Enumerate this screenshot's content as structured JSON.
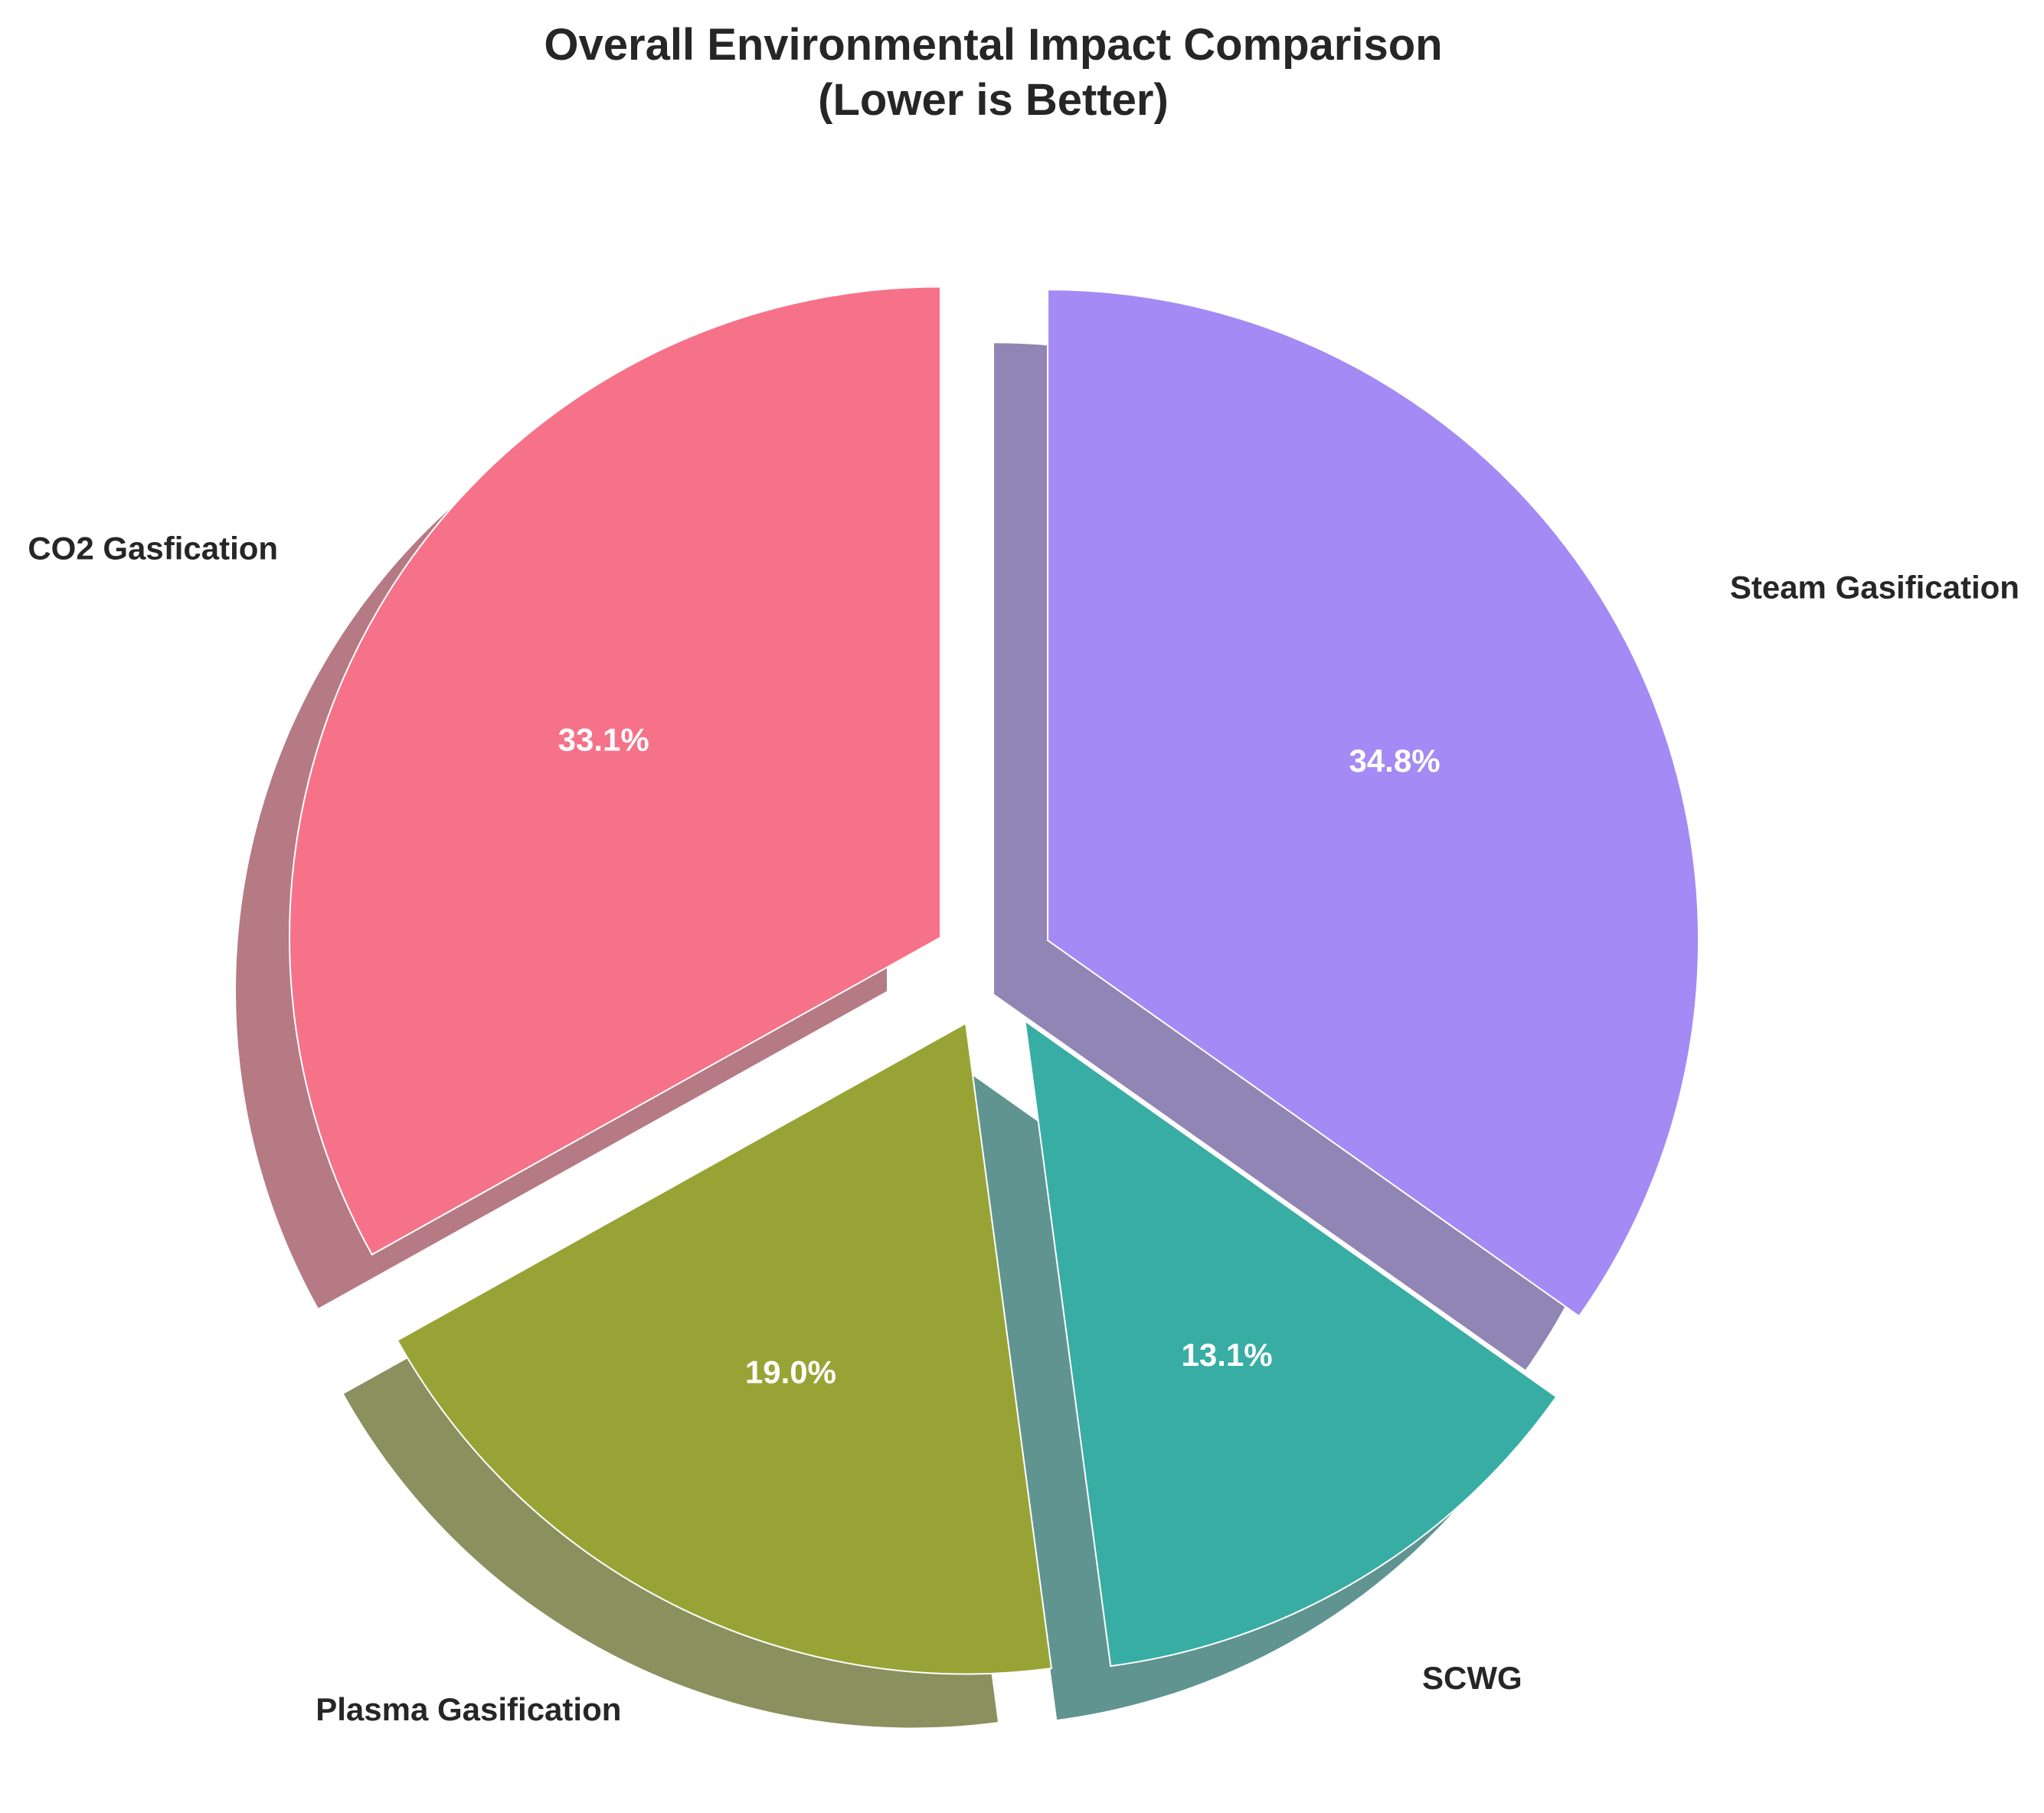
{
  "chart_data": {
    "type": "pie",
    "title": "Overall Environmental Impact Comparison",
    "subtitle": "(Lower is Better)",
    "categories": [
      "CO2 Gasfication",
      "Plasma Gasification",
      "SCWG",
      "Steam Gasification"
    ],
    "values": [
      33.1,
      19.0,
      13.1,
      34.8
    ],
    "percent_labels": [
      "33.1%",
      "19.0%",
      "13.1%",
      "34.8%"
    ],
    "colors": [
      "#f67288",
      "#97a435",
      "#38ada4",
      "#a48af4"
    ],
    "shadow": true,
    "exploded": true,
    "start_angle_deg": 90,
    "direction": "counterclockwise"
  }
}
